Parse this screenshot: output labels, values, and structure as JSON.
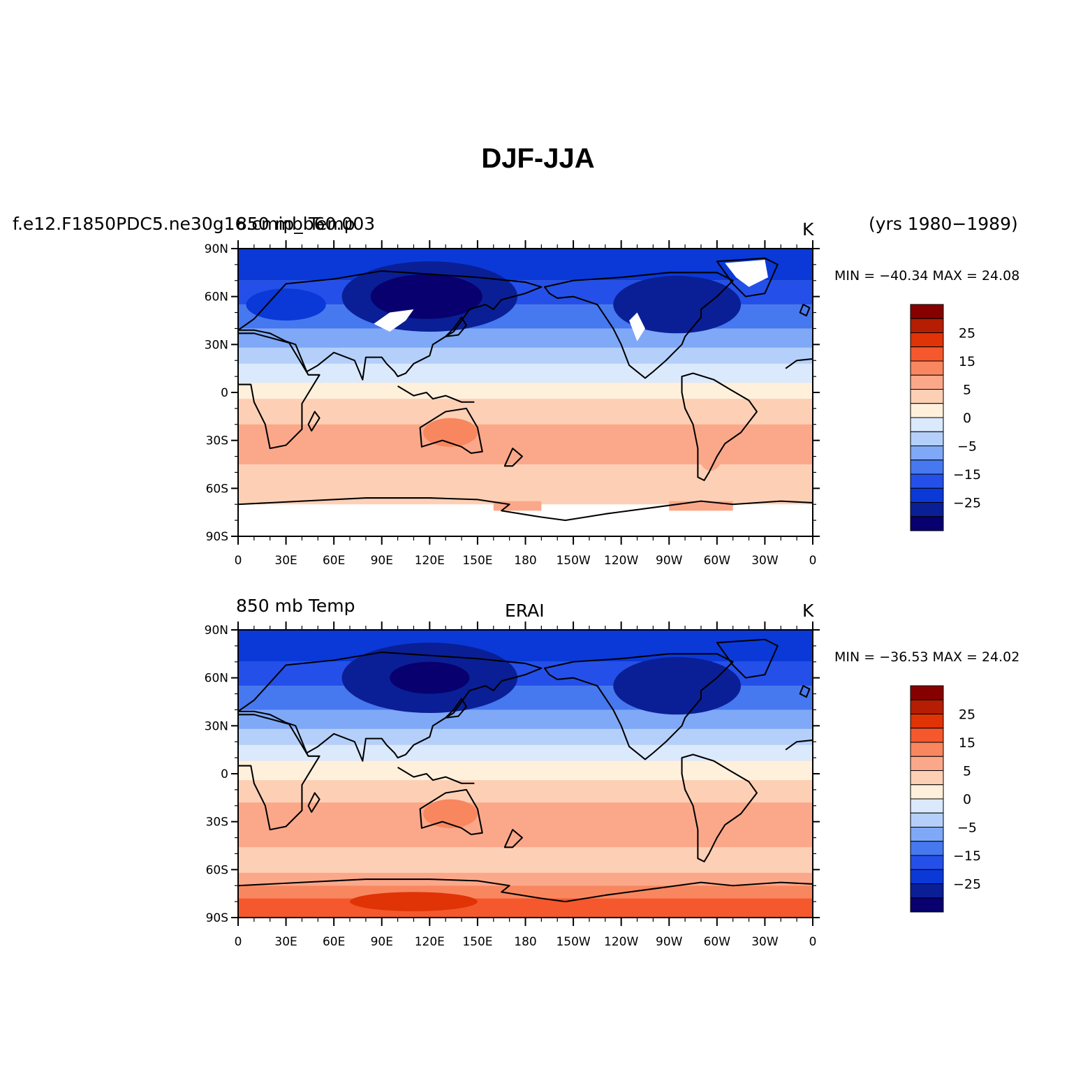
{
  "title": "DJF-JJA",
  "years": "(yrs 1980−1989)",
  "colors": {
    "levels": [
      "#08006e",
      "#0a1f96",
      "#0a39d8",
      "#2450e9",
      "#4678ef",
      "#7fa8f7",
      "#b4d0fa",
      "#dbe9fd",
      "#fff0dc",
      "#fdd0b6",
      "#fba88a",
      "#f88760",
      "#f4582c",
      "#e03306",
      "#b51e02",
      "#870000"
    ],
    "land_outline": "#000000",
    "missing": "#ffffff"
  },
  "colorbar": {
    "labels": [
      "25",
      "15",
      "5",
      "0",
      "−5",
      "−15",
      "−25"
    ]
  },
  "axes": {
    "lat_labels": [
      "90N",
      "60N",
      "30N",
      "0",
      "30S",
      "60S",
      "90S"
    ],
    "lon_labels": [
      "0",
      "30E",
      "60E",
      "90E",
      "120E",
      "150E",
      "180",
      "150W",
      "120W",
      "90W",
      "60W",
      "30W",
      "0"
    ]
  },
  "panels": [
    {
      "id": "model",
      "case_name": "f.e12.F1850PDC5.ne30g16.cmip_b60.003",
      "variable": "850 mb Temp",
      "center": "",
      "units": "K",
      "min_max": "MIN = −40.34 MAX =  24.08"
    },
    {
      "id": "obs",
      "case_name": "",
      "variable": "850 mb Temp",
      "center": "ERAI",
      "units": "K",
      "min_max": "MIN = −36.53 MAX =  24.02"
    }
  ]
}
